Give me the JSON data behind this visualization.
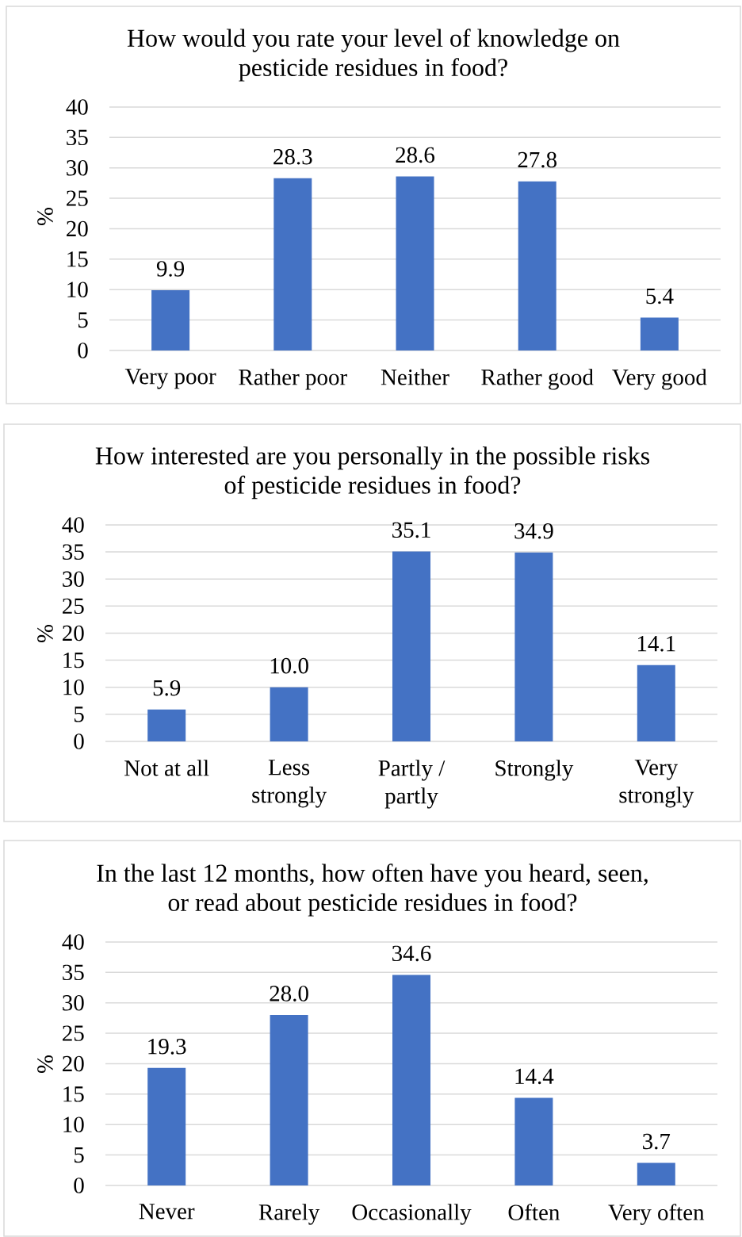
{
  "chart_data": [
    {
      "type": "bar",
      "title": "How would you rate your level of knowledge on pesticide residues in food?",
      "ylabel": "%",
      "categories": [
        "Very poor",
        "Rather poor",
        "Neither",
        "Rather good",
        "Very good"
      ],
      "values": [
        9.9,
        28.3,
        28.6,
        27.8,
        5.4
      ],
      "value_labels": [
        "9.9",
        "28.3",
        "28.6",
        "27.8",
        "5.4"
      ],
      "color": "#4472c4",
      "ylim": [
        0,
        40
      ],
      "yticks": [
        0,
        5,
        10,
        15,
        20,
        25,
        30,
        35,
        40
      ],
      "grid": "y"
    },
    {
      "type": "bar",
      "title": "How interested are you personally in the possible risks of pesticide residues in food?",
      "ylabel": "%",
      "categories": [
        "Not at all",
        "Less strongly",
        "Partly / partly",
        "Strongly",
        "Very strongly"
      ],
      "values": [
        5.9,
        10.0,
        35.1,
        34.9,
        14.1
      ],
      "value_labels": [
        "5.9",
        "10.0",
        "35.1",
        "34.9",
        "14.1"
      ],
      "color": "#4472c4",
      "ylim": [
        0,
        40
      ],
      "yticks": [
        0,
        5,
        10,
        15,
        20,
        25,
        30,
        35,
        40
      ],
      "grid": "y"
    },
    {
      "type": "bar",
      "title": "In the last 12 months, how often have you heard, seen, or read about pesticide residues in food?",
      "ylabel": "%",
      "categories": [
        "Never",
        "Rarely",
        "Occasionally",
        "Often",
        "Very often"
      ],
      "values": [
        19.3,
        28.0,
        34.6,
        14.4,
        3.7
      ],
      "value_labels": [
        "19.3",
        "28.0",
        "34.6",
        "14.4",
        "3.7"
      ],
      "color": "#4472c4",
      "ylim": [
        0,
        40
      ],
      "yticks": [
        0,
        5,
        10,
        15,
        20,
        25,
        30,
        35,
        40
      ],
      "grid": "y"
    }
  ]
}
